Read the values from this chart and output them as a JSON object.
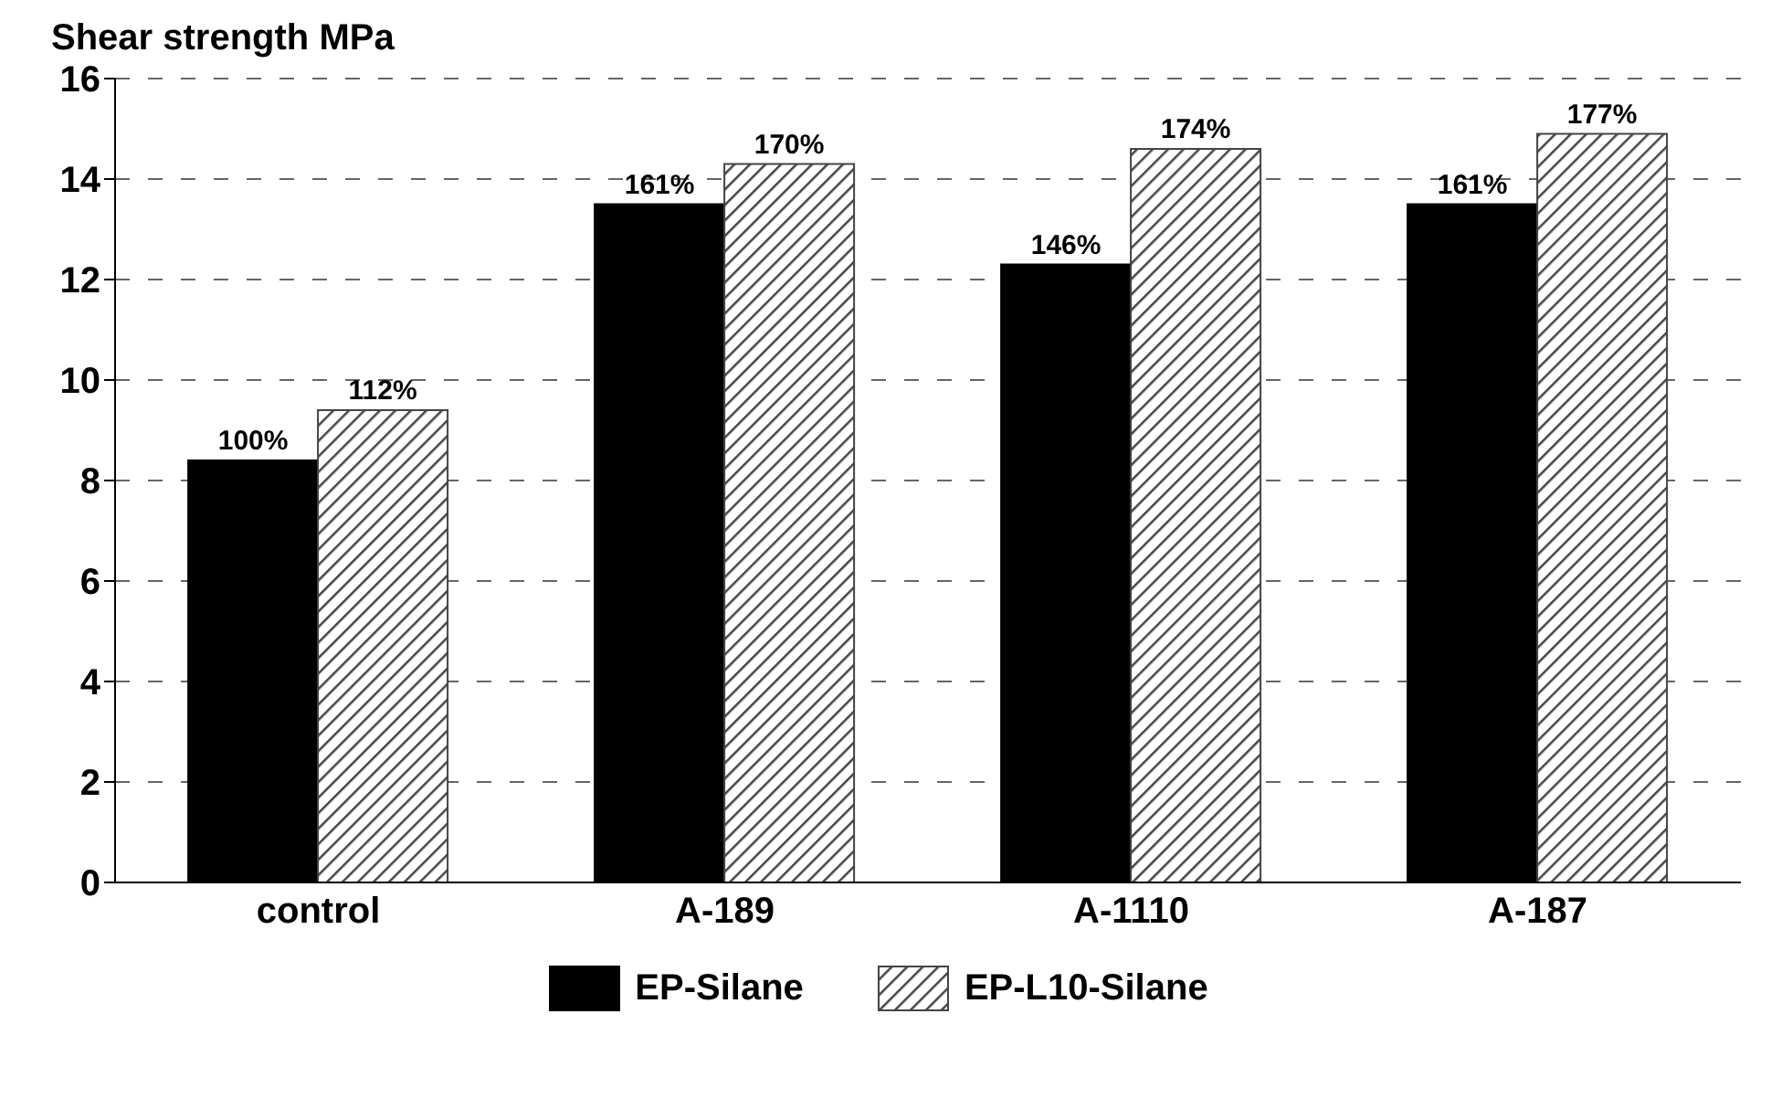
{
  "chart_data": {
    "type": "bar",
    "ylabel": "Shear strength    MPa",
    "categories": [
      "control",
      "A-189",
      "A-1110",
      "A-187"
    ],
    "series": [
      {
        "name": "EP-Silane",
        "color": "#000000",
        "values": [
          8.4,
          13.5,
          12.3,
          13.5
        ]
      },
      {
        "name": "EP-L10-Silane",
        "color": "#444444",
        "values": [
          9.4,
          14.3,
          14.6,
          14.9
        ]
      }
    ],
    "annotations": [
      {
        "text": "100%",
        "x": "control",
        "y": 8.4
      },
      {
        "text": "161%",
        "x": "A-189",
        "y": 13.5
      },
      {
        "text": "146%",
        "x": "A-1110",
        "y": 12.3
      },
      {
        "text": "161%",
        "x": "A-187",
        "y": 13.5
      },
      {
        "text": "112%",
        "x": "control",
        "y": 9.4
      },
      {
        "text": "170%",
        "x": "A-189",
        "y": 14.3
      },
      {
        "text": "174%",
        "x": "A-1110",
        "y": 14.6
      },
      {
        "text": "177%",
        "x": "A-187",
        "y": 14.9
      }
    ],
    "ylim": [
      0,
      16
    ],
    "yticks": [
      0,
      2,
      4,
      6,
      8,
      10,
      12,
      14,
      16
    ],
    "grid": "y",
    "legend": "bottom"
  }
}
